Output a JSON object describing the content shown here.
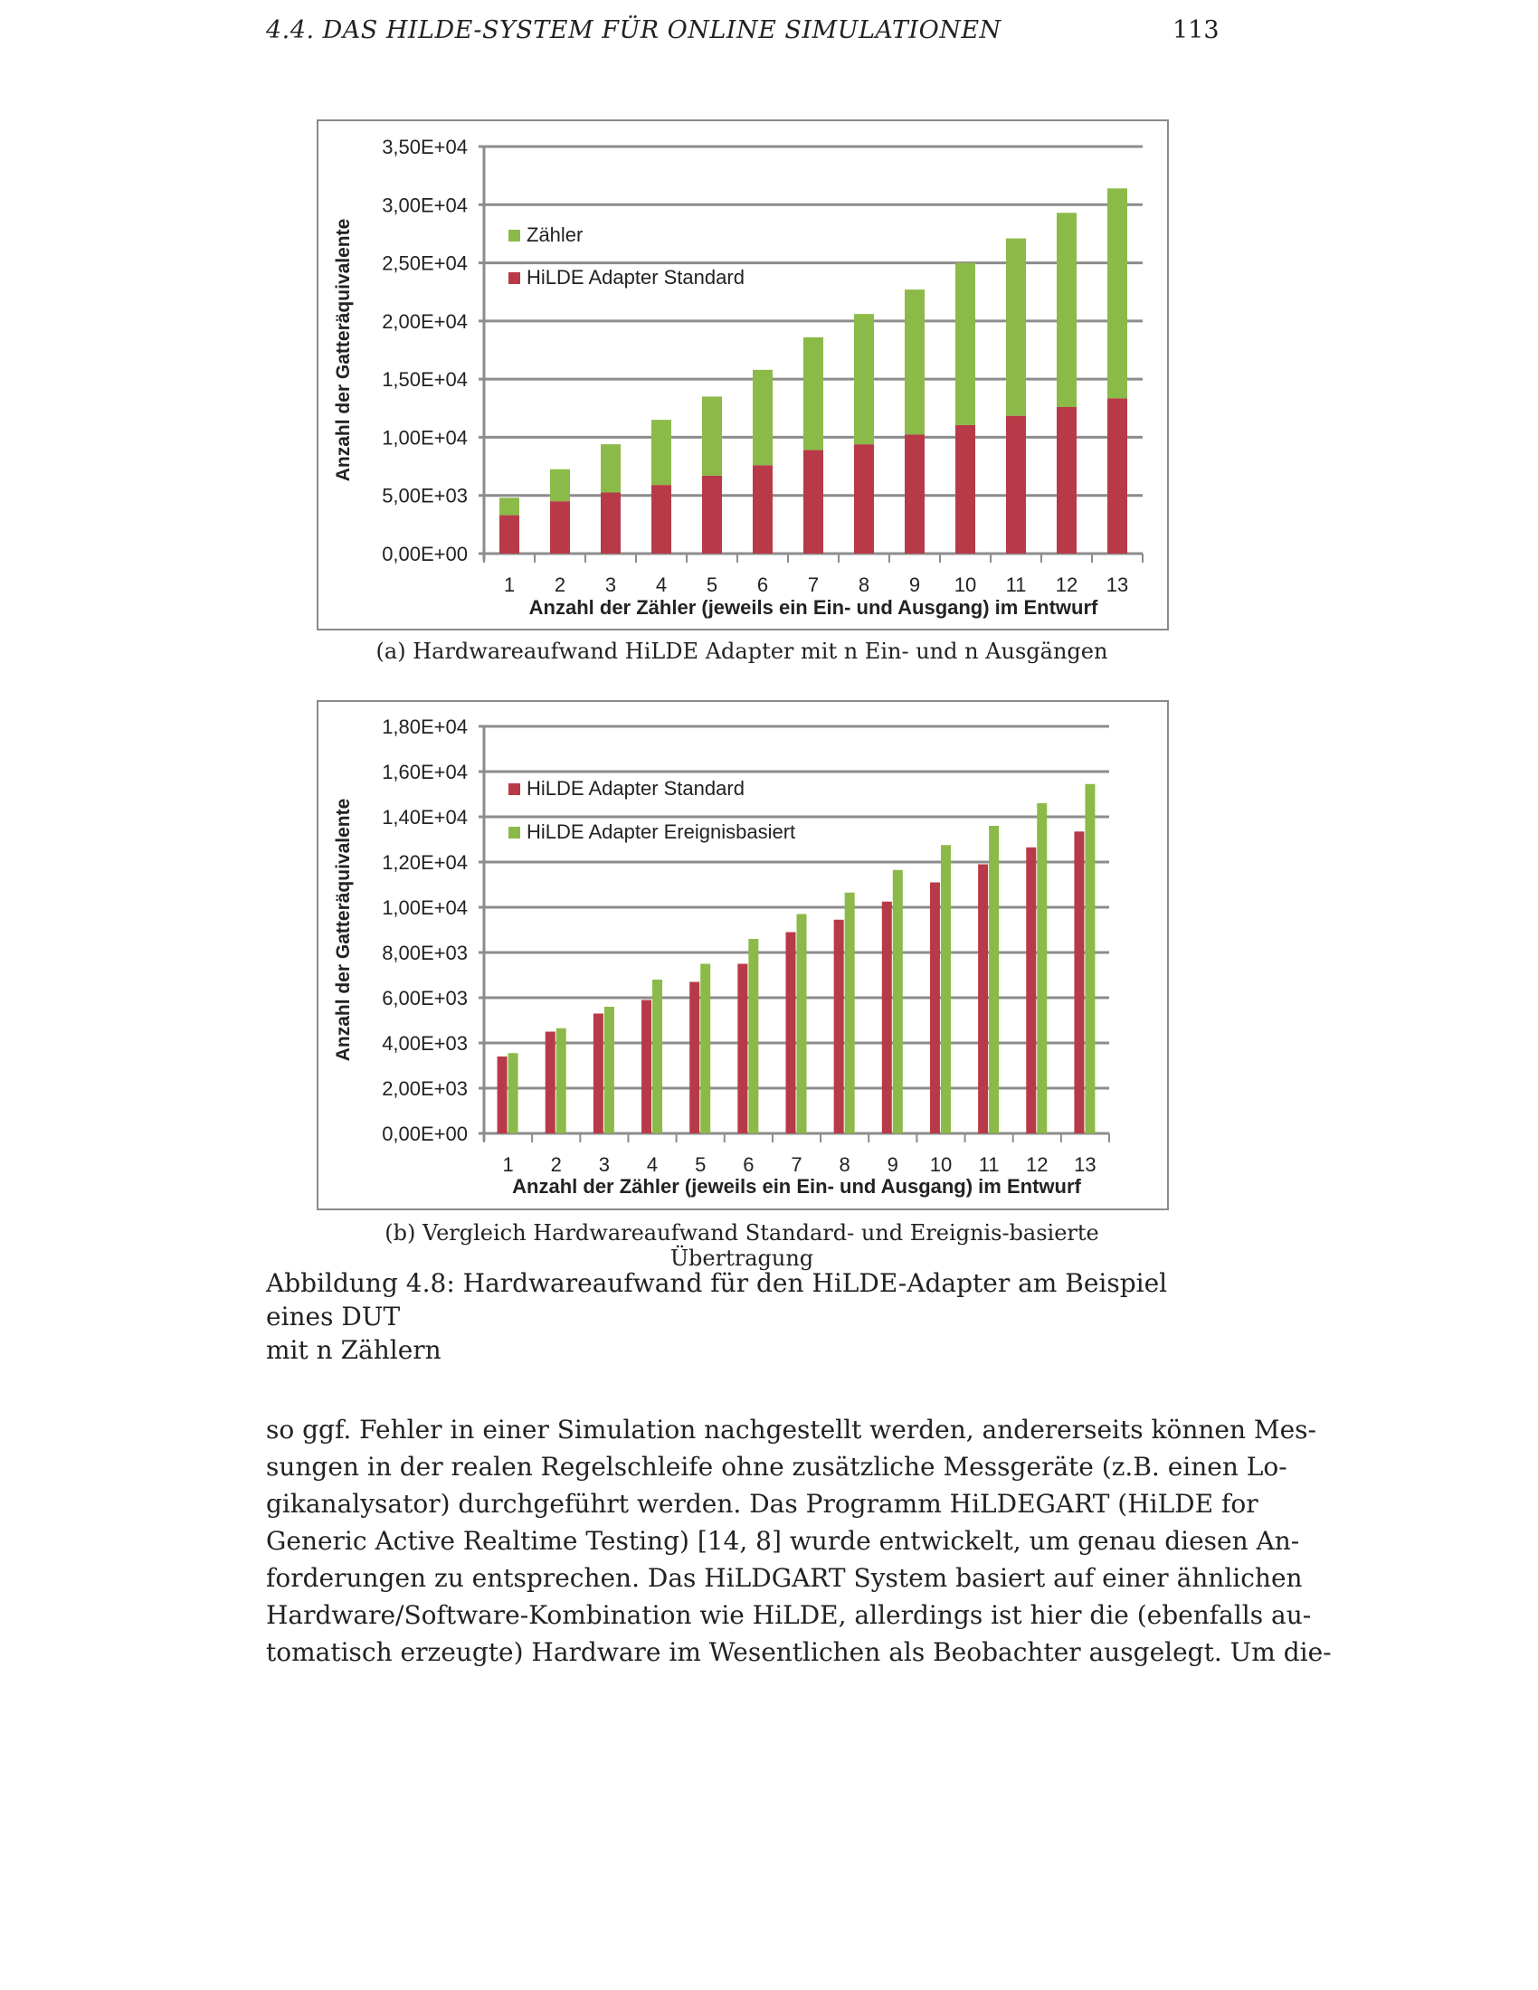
{
  "header": {
    "section": "4.4.  DAS HILDE-SYSTEM FÜR ONLINE SIMULATIONEN",
    "page_number": "113"
  },
  "chart_data": [
    {
      "type": "bar",
      "stacked": true,
      "title": "",
      "xlabel": "Anzahl der Zähler (jeweils ein Ein- und Ausgang)  im Entwurf",
      "ylabel": "Anzahl der Gatteräquivalente",
      "categories": [
        "1",
        "2",
        "3",
        "4",
        "5",
        "6",
        "7",
        "8",
        "9",
        "10",
        "11",
        "12",
        "13"
      ],
      "yticks": [
        "0,00E+00",
        "5,00E+03",
        "1,00E+04",
        "1,50E+04",
        "2,00E+04",
        "2,50E+04",
        "3,00E+04",
        "3,50E+04"
      ],
      "ylim": [
        0,
        35000
      ],
      "grid": true,
      "legend": "top-left",
      "series": [
        {
          "name": "HiLDE Adapter Standard",
          "color": "#b83a48",
          "values": [
            3300,
            4500,
            5250,
            5900,
            6700,
            7600,
            8900,
            9400,
            10250,
            11050,
            11850,
            12600,
            13350
          ]
        },
        {
          "name": "Zähler",
          "color": "#8bba48",
          "values": [
            1500,
            2750,
            4150,
            5600,
            6800,
            8200,
            9700,
            11200,
            12450,
            13950,
            15250,
            16700,
            18050
          ]
        }
      ],
      "legend_order": [
        1,
        0
      ],
      "caption": "(a) Hardwareaufwand HiLDE Adapter mit n Ein- und n Ausgängen"
    },
    {
      "type": "bar",
      "stacked": false,
      "title": "",
      "xlabel": "Anzahl der Zähler (jeweils ein Ein- und Ausgang)  im Entwurf",
      "ylabel": "Anzahl der Gatteräquivalente",
      "categories": [
        "1",
        "2",
        "3",
        "4",
        "5",
        "6",
        "7",
        "8",
        "9",
        "10",
        "11",
        "12",
        "13"
      ],
      "yticks": [
        "0,00E+00",
        "2,00E+03",
        "4,00E+03",
        "6,00E+03",
        "8,00E+03",
        "1,00E+04",
        "1,20E+04",
        "1,40E+04",
        "1,60E+04",
        "1,80E+04"
      ],
      "ylim": [
        0,
        18000
      ],
      "grid": true,
      "legend": "top-left",
      "series": [
        {
          "name": "HiLDE Adapter Standard",
          "color": "#b83a48",
          "values": [
            3400,
            4500,
            5300,
            5900,
            6700,
            7500,
            8900,
            9450,
            10250,
            11100,
            11900,
            12650,
            13350
          ]
        },
        {
          "name": "HiLDE Adapter Ereignisbasiert",
          "color": "#8bba48",
          "values": [
            3550,
            4650,
            5600,
            6800,
            7500,
            8600,
            9700,
            10650,
            11650,
            12750,
            13600,
            14600,
            15450
          ]
        }
      ],
      "legend_order": [
        0,
        1
      ],
      "caption": "(b) Vergleich Hardwareaufwand Standard- und Ereignis-basierte Übertragung"
    }
  ],
  "figure_caption": [
    "Abbildung 4.8: Hardwareaufwand für den HiLDE-Adapter am Beispiel eines DUT",
    "mit n Zählern"
  ],
  "body_lines": [
    "so ggf. Fehler in einer Simulation nachgestellt werden, andererseits können Mes-",
    "sungen in der realen Regelschleife ohne zusätzliche Messgeräte (z.B. einen Lo-",
    "gikanalysator) durchgeführt werden. Das Programm HiLDEGART (HiLDE for",
    "Generic Active Realtime Testing) [14, 8] wurde entwickelt, um genau diesen An-",
    "forderungen zu entsprechen. Das HiLDGART System basiert auf einer ähnlichen",
    "Hardware/Software-Kombination wie HiLDE, allerdings ist hier die (ebenfalls au-",
    "tomatisch erzeugte) Hardware im Wesentlichen als Beobachter ausgelegt. Um die-"
  ]
}
